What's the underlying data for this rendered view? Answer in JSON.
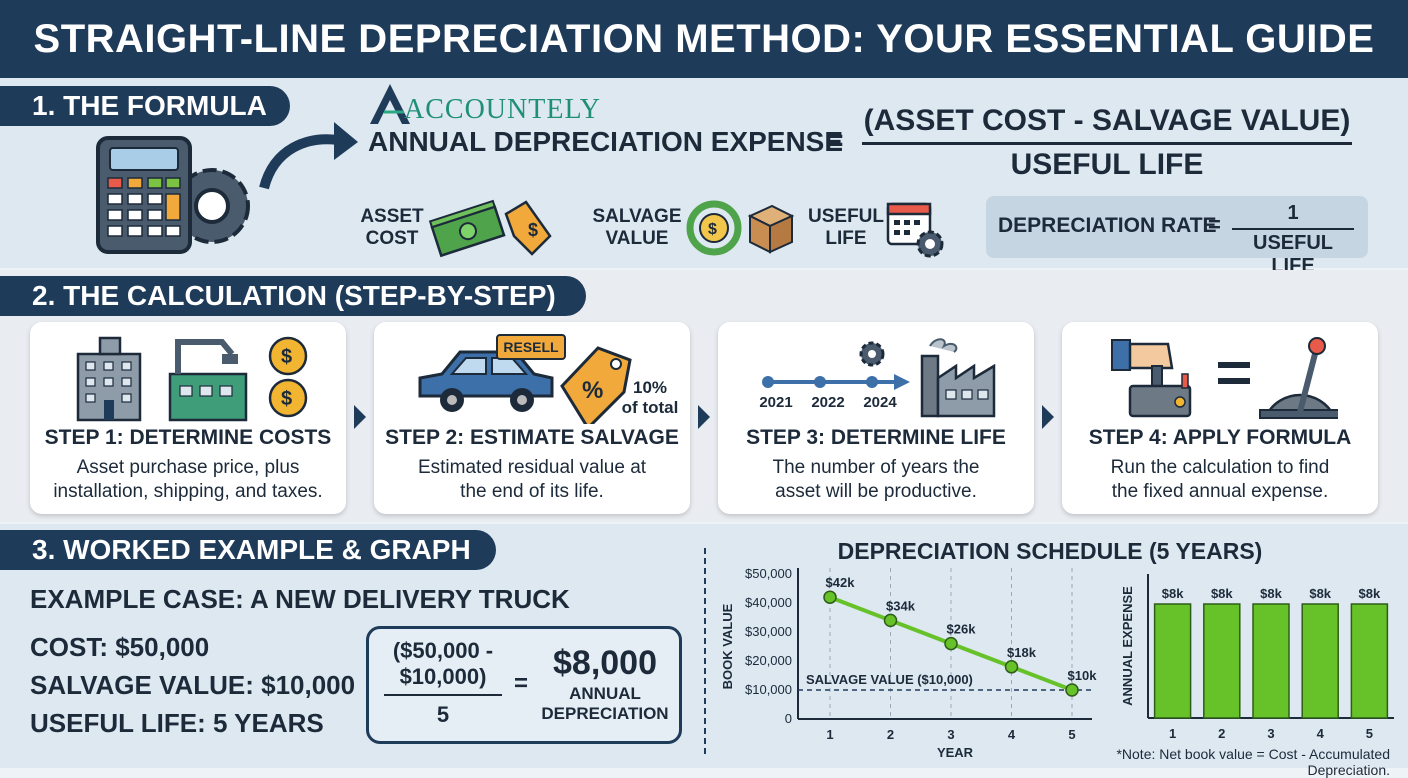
{
  "header": {
    "title": "STRAIGHT-LINE DEPRECIATION METHOD: YOUR ESSENTIAL GUIDE"
  },
  "formula": {
    "section_title": "1. THE FORMULA",
    "brand": "ACCOUNTELY",
    "lhs": "ANNUAL DEPRECIATION EXPENSE",
    "equals": "=",
    "numerator": "(ASSET COST - SALVAGE VALUE)",
    "denominator": "USEFUL LIFE",
    "legend": [
      {
        "label_line1": "ASSET",
        "label_line2": "COST",
        "icon": "money-tag-icon"
      },
      {
        "label_line1": "SALVAGE",
        "label_line2": "VALUE",
        "icon": "recycle-box-icon"
      },
      {
        "label_line1": "USEFUL",
        "label_line2": "LIFE",
        "icon": "calendar-gear-icon"
      }
    ],
    "rate": {
      "label": "DEPRECIATION RATE",
      "equals": "=",
      "numerator": "1",
      "denominator": "USEFUL LIFE"
    }
  },
  "calculation": {
    "section_title": "2. THE CALCULATION (STEP-BY-STEP)",
    "steps": [
      {
        "title": "STEP 1: DETERMINE COSTS",
        "desc_line1": "Asset purchase price, plus",
        "desc_line2": "installation, shipping, and taxes."
      },
      {
        "title": "STEP 2: ESTIMATE SALVAGE",
        "desc_line1": "Estimated residual value at",
        "desc_line2": "the end of its life.",
        "tag_label": "RESELL",
        "pct_line1": "10%",
        "pct_line2": "of total"
      },
      {
        "title": "STEP 3: DETERMINE LIFE",
        "desc_line1": "The number of years the",
        "desc_line2": "asset will be productive.",
        "years": [
          "2021",
          "2022",
          "2024"
        ]
      },
      {
        "title": "STEP 4: APPLY FORMULA",
        "desc_line1": "Run the calculation to find",
        "desc_line2": "the fixed annual expense."
      }
    ]
  },
  "example": {
    "section_title": "3. WORKED EXAMPLE & GRAPH",
    "case_title": "EXAMPLE CASE: A NEW DELIVERY TRUCK",
    "cost": "COST: $50,000",
    "salvage": "SALVAGE VALUE: $10,000",
    "life": "USEFUL LIFE: 5 YEARS",
    "calc_num_line1": "($50,000 -",
    "calc_num_line2": "$10,000)",
    "calc_den": "5",
    "calc_eq": "=",
    "result": "$8,000",
    "result_line1": "ANNUAL",
    "result_line2": "DEPRECIATION"
  },
  "chart_data": [
    {
      "type": "line",
      "title": "DEPRECIATION SCHEDULE (5 YEARS)",
      "xlabel": "YEAR",
      "ylabel": "BOOK VALUE",
      "x": [
        1,
        2,
        3,
        4,
        5
      ],
      "values": [
        42000,
        34000,
        26000,
        18000,
        10000
      ],
      "data_labels": [
        "$42k",
        "$34k",
        "$26k",
        "$18k",
        "$10k"
      ],
      "yticks": [
        "0",
        "$10,000",
        "$20,000",
        "$30,000",
        "$40,000",
        "$50,000"
      ],
      "ylim": [
        0,
        50000
      ],
      "reference_line": {
        "value": 10000,
        "label": "SALVAGE VALUE ($10,000)"
      },
      "color": "#66c228"
    },
    {
      "type": "bar",
      "ylabel": "ANNUAL EXPENSE",
      "categories": [
        "1",
        "2",
        "3",
        "4",
        "5"
      ],
      "values": [
        8000,
        8000,
        8000,
        8000,
        8000
      ],
      "data_labels": [
        "$8k",
        "$8k",
        "$8k",
        "$8k",
        "$8k"
      ],
      "color": "#66c228"
    }
  ],
  "note": "*Note: Net book value = Cost - Accumulated Depreciation."
}
